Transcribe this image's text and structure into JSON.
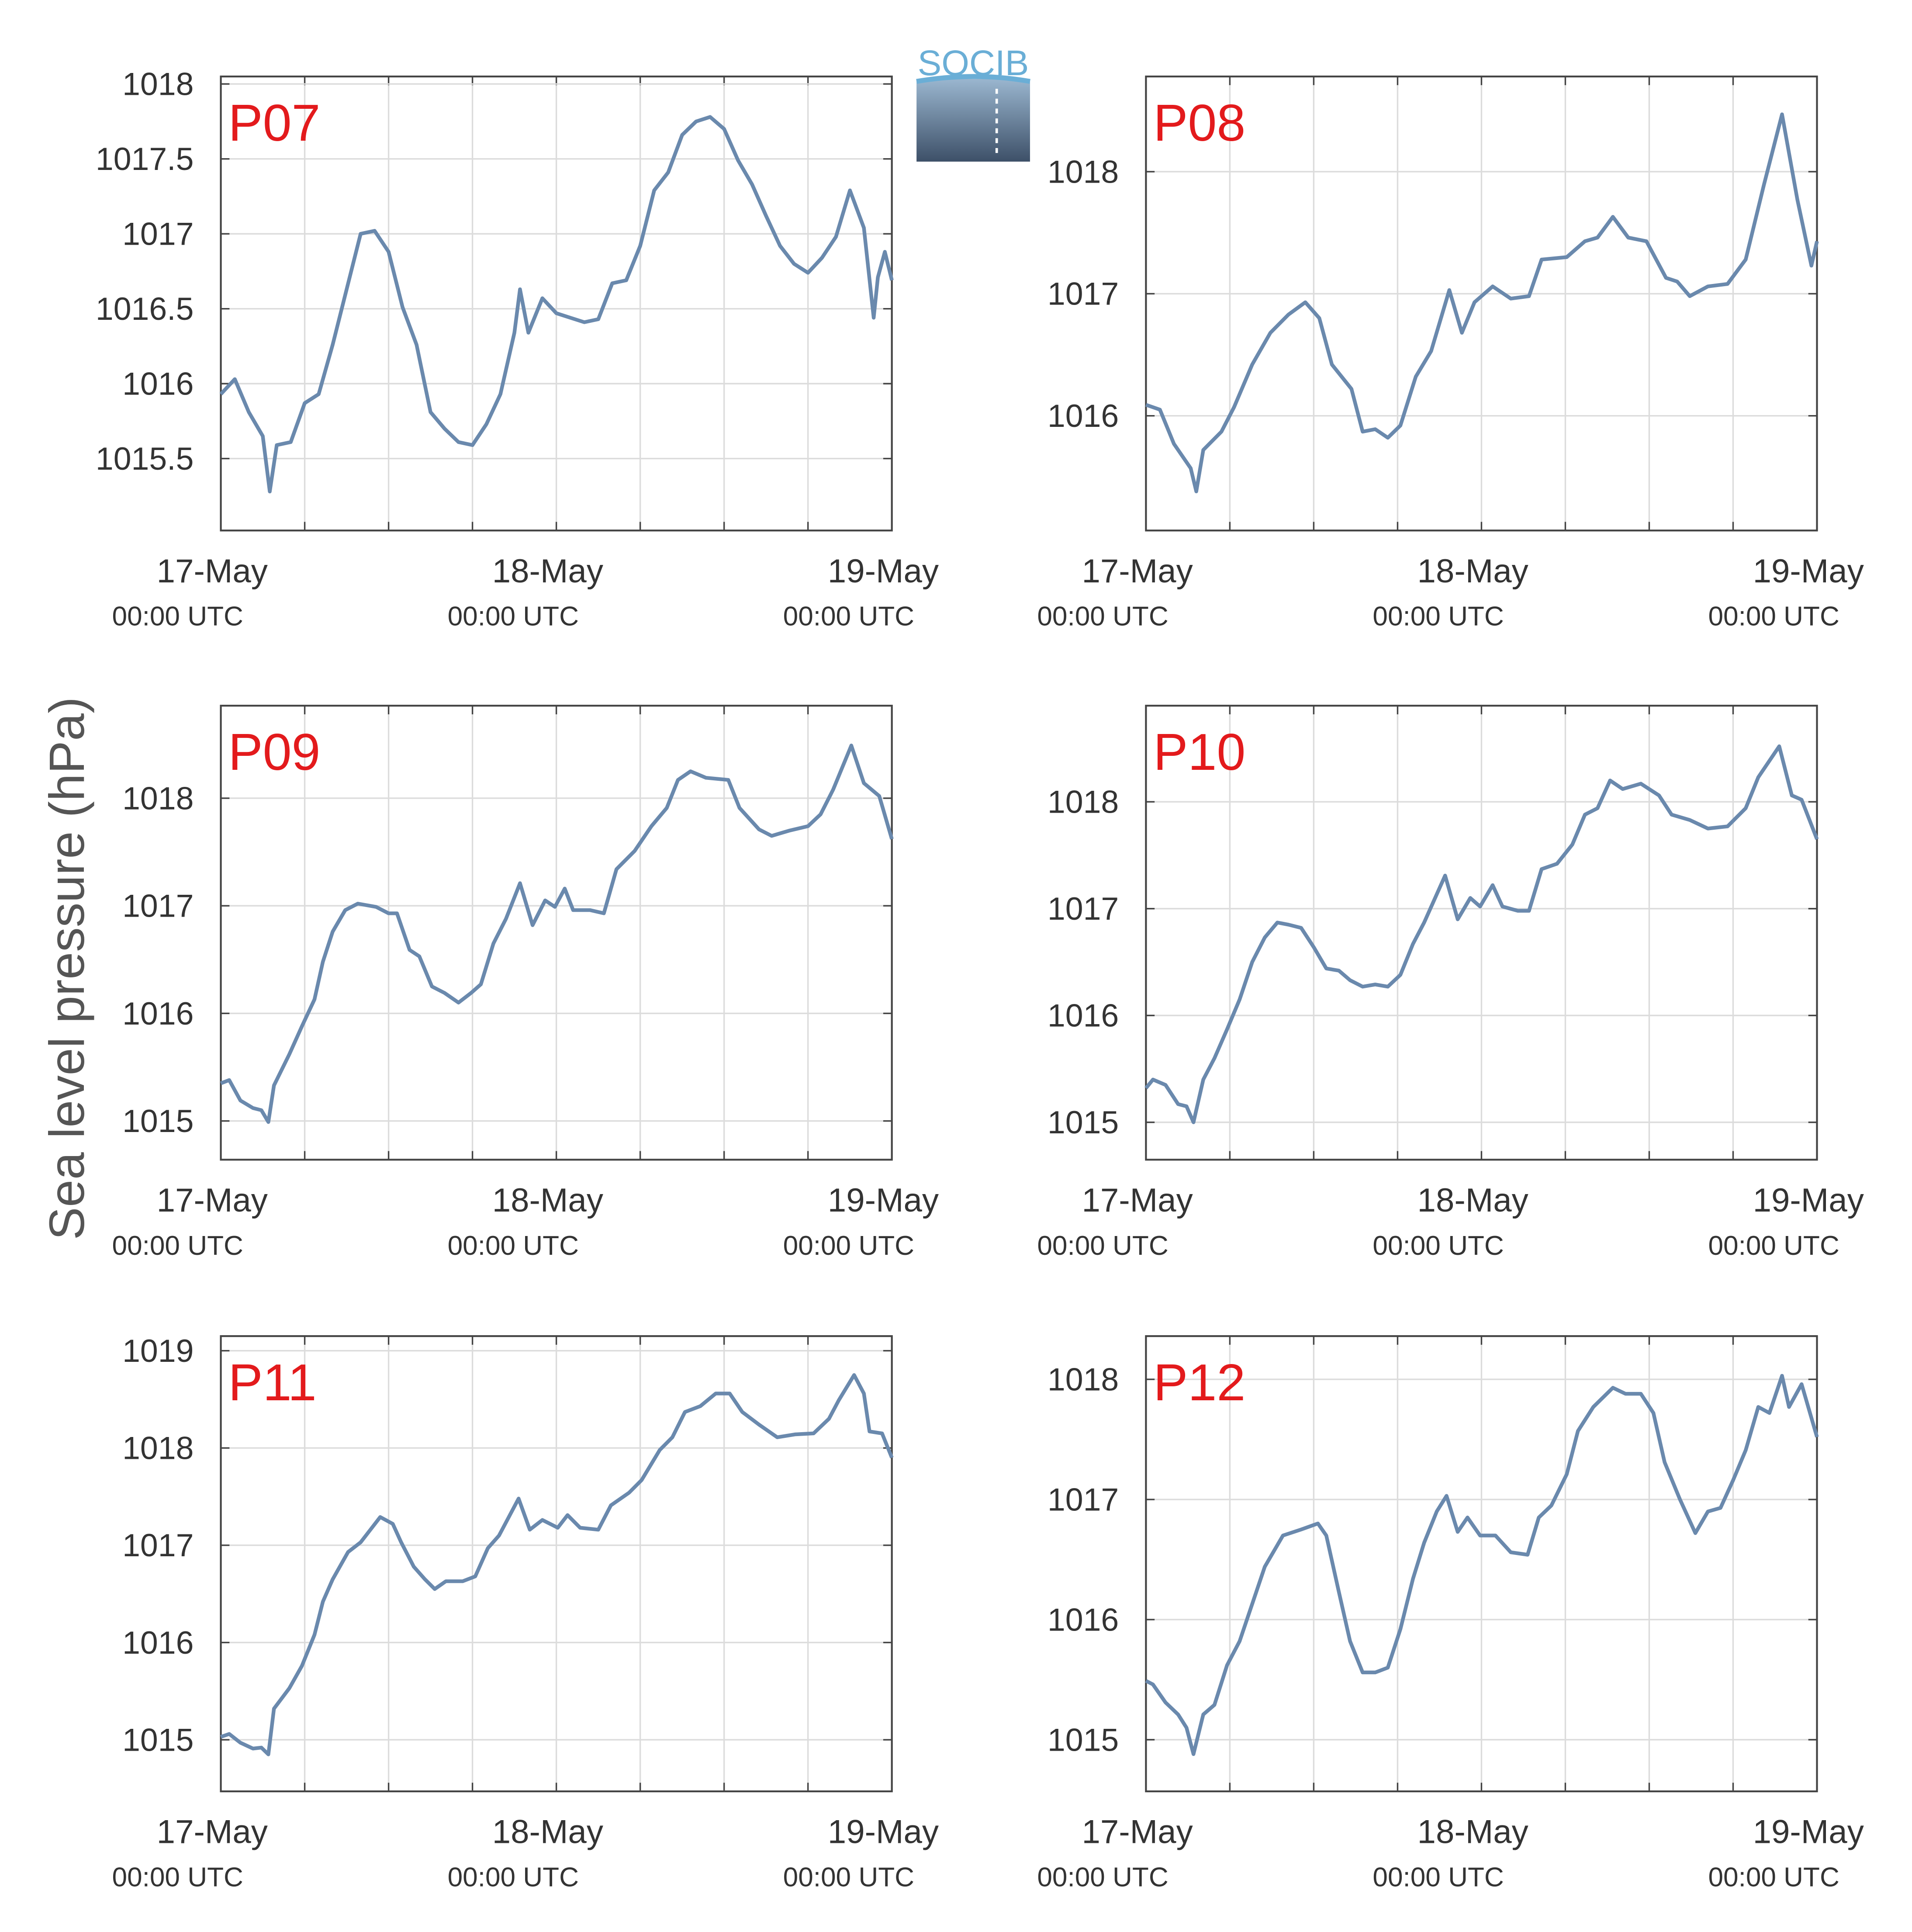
{
  "ylabel": "Sea level pressure (hPa)",
  "logo": "SOCIB",
  "chart_data": [
    {
      "type": "line",
      "title": "P07",
      "color": "#6a89ad",
      "grid": true,
      "xlim": [
        0,
        48
      ],
      "ylim": [
        1015.02,
        1018.05
      ],
      "yticks": [
        {
          "value": 1015.5,
          "label": "1015.5"
        },
        1016,
        {
          "value": 1016.5,
          "label": "1016.5"
        },
        1017,
        {
          "value": 1017.5,
          "label": "1017.5"
        },
        1018
      ],
      "xticks": [
        {
          "value": 0,
          "label": [
            "17-May",
            "00:00 UTC"
          ]
        },
        {
          "value": 24,
          "label": [
            "18-May",
            "00:00 UTC"
          ]
        },
        {
          "value": 48,
          "label": [
            "19-May",
            "00:00 UTC"
          ]
        }
      ],
      "xminorticks": [
        6,
        12,
        18,
        30,
        36,
        42
      ],
      "x": [
        0,
        1,
        2,
        3,
        3.5,
        4,
        5,
        6,
        7,
        8,
        9,
        10,
        11,
        12,
        13,
        14,
        15,
        16,
        17,
        18,
        19,
        20,
        21,
        21.4,
        22,
        23,
        24,
        25,
        26,
        27,
        28,
        29,
        30,
        31,
        32,
        33,
        34,
        35,
        36,
        37,
        38,
        39,
        40,
        41,
        42,
        43,
        44,
        45,
        46,
        46.7,
        47,
        47.5,
        48
      ],
      "values": [
        1015.93,
        1016.03,
        1015.81,
        1015.65,
        1015.28,
        1015.59,
        1015.61,
        1015.87,
        1015.93,
        1016.26,
        1016.63,
        1017.0,
        1017.02,
        1016.88,
        1016.51,
        1016.26,
        1015.81,
        1015.7,
        1015.61,
        1015.59,
        1015.73,
        1015.93,
        1016.34,
        1016.63,
        1016.34,
        1016.57,
        1016.47,
        1016.44,
        1016.41,
        1016.43,
        1016.67,
        1016.69,
        1016.92,
        1017.29,
        1017.41,
        1017.66,
        1017.75,
        1017.78,
        1017.7,
        1017.49,
        1017.33,
        1017.12,
        1016.92,
        1016.8,
        1016.74,
        1016.84,
        1016.98,
        1017.29,
        1017.04,
        1016.44,
        1016.71,
        1016.88,
        1016.69
      ]
    },
    {
      "type": "line",
      "title": "P08",
      "color": "#6a89ad",
      "grid": true,
      "xlim": [
        0,
        48
      ],
      "ylim": [
        1015.06,
        1018.78
      ],
      "yticks": [
        1016,
        1017,
        1018
      ],
      "xticks": [
        {
          "value": 0,
          "label": [
            "17-May",
            "00:00 UTC"
          ]
        },
        {
          "value": 24,
          "label": [
            "18-May",
            "00:00 UTC"
          ]
        },
        {
          "value": 48,
          "label": [
            "19-May",
            "00:00 UTC"
          ]
        }
      ],
      "xminorticks": [
        6,
        12,
        18,
        30,
        36,
        42
      ],
      "x": [
        0,
        1,
        2,
        3.2,
        3.6,
        4.1,
        5.4,
        6.3,
        7.6,
        8.9,
        10.2,
        11.4,
        12.4,
        13.3,
        14.7,
        15.5,
        16.4,
        17.3,
        18.2,
        19.3,
        20.4,
        21.7,
        22.6,
        23.5,
        24.8,
        26.1,
        27.4,
        28.3,
        30.1,
        31.4,
        32.3,
        33.4,
        34.5,
        35.8,
        37.2,
        38,
        38.9,
        40.2,
        41.6,
        42.9,
        44.2,
        45.5,
        46.6,
        47.6,
        48
      ],
      "values": [
        1016.09,
        1016.05,
        1015.77,
        1015.57,
        1015.38,
        1015.72,
        1015.87,
        1016.07,
        1016.42,
        1016.68,
        1016.83,
        1016.93,
        1016.8,
        1016.42,
        1016.22,
        1015.87,
        1015.89,
        1015.82,
        1015.92,
        1016.32,
        1016.53,
        1017.03,
        1016.68,
        1016.93,
        1017.06,
        1016.96,
        1016.98,
        1017.28,
        1017.3,
        1017.43,
        1017.46,
        1017.63,
        1017.46,
        1017.43,
        1017.13,
        1017.1,
        1016.98,
        1017.06,
        1017.08,
        1017.28,
        1017.89,
        1018.47,
        1017.77,
        1017.23,
        1017.43
      ]
    },
    {
      "type": "line",
      "title": "P09",
      "color": "#6a89ad",
      "grid": true,
      "xlim": [
        0,
        48
      ],
      "ylim": [
        1014.64,
        1018.86
      ],
      "yticks": [
        1015,
        1016,
        1017,
        1018
      ],
      "xticks": [
        {
          "value": 0,
          "label": [
            "17-May",
            "00:00 UTC"
          ]
        },
        {
          "value": 24,
          "label": [
            "18-May",
            "00:00 UTC"
          ]
        },
        {
          "value": 48,
          "label": [
            "19-May",
            "00:00 UTC"
          ]
        }
      ],
      "xminorticks": [
        6,
        12,
        18,
        30,
        36,
        42
      ],
      "x": [
        0,
        0.6,
        1.4,
        2.3,
        2.9,
        3.4,
        3.8,
        4.9,
        5.8,
        6.7,
        7.3,
        8,
        8.9,
        9.8,
        11.1,
        12,
        12.6,
        13.5,
        14.2,
        15.1,
        16,
        17,
        17.9,
        18.6,
        19.5,
        20.4,
        21.4,
        22.3,
        23.2,
        23.9,
        24.6,
        25.2,
        26.4,
        27.4,
        28.3,
        29.6,
        30.8,
        31.9,
        32.7,
        33.6,
        34.7,
        36.3,
        37.1,
        38.5,
        39.4,
        40.7,
        42,
        42.9,
        43.8,
        45.1,
        46,
        47.1,
        48
      ],
      "values": [
        1015.35,
        1015.38,
        1015.19,
        1015.12,
        1015.1,
        1014.99,
        1015.33,
        1015.62,
        1015.88,
        1016.13,
        1016.48,
        1016.76,
        1016.96,
        1017.02,
        1016.99,
        1016.93,
        1016.93,
        1016.59,
        1016.53,
        1016.25,
        1016.19,
        1016.1,
        1016.19,
        1016.27,
        1016.65,
        1016.88,
        1017.21,
        1016.82,
        1017.05,
        1016.99,
        1017.16,
        1016.96,
        1016.96,
        1016.93,
        1017.34,
        1017.51,
        1017.74,
        1017.91,
        1018.17,
        1018.25,
        1018.19,
        1018.17,
        1017.91,
        1017.71,
        1017.65,
        1017.7,
        1017.74,
        1017.85,
        1018.08,
        1018.49,
        1018.14,
        1018.02,
        1017.62
      ]
    },
    {
      "type": "line",
      "title": "P10",
      "color": "#6a89ad",
      "grid": true,
      "xlim": [
        0,
        48
      ],
      "ylim": [
        1014.65,
        1018.9
      ],
      "yticks": [
        1015,
        1016,
        1017,
        1018
      ],
      "xticks": [
        {
          "value": 0,
          "label": [
            "17-May",
            "00:00 UTC"
          ]
        },
        {
          "value": 24,
          "label": [
            "18-May",
            "00:00 UTC"
          ]
        },
        {
          "value": 48,
          "label": [
            "19-May",
            "00:00 UTC"
          ]
        }
      ],
      "xminorticks": [
        6,
        12,
        18,
        30,
        36,
        42
      ],
      "x": [
        0,
        0.5,
        1.4,
        2.3,
        2.9,
        3.4,
        4.1,
        4.9,
        5.8,
        6.7,
        7.6,
        8.5,
        9.4,
        10.2,
        11.1,
        12,
        12.9,
        13.8,
        14.6,
        15.5,
        16.4,
        17.3,
        18.2,
        19.1,
        19.9,
        21.4,
        22.3,
        23.2,
        23.9,
        24.8,
        25.5,
        26.6,
        27.4,
        28.3,
        29.4,
        30.5,
        31.4,
        32.3,
        33.2,
        34.1,
        35.4,
        36.7,
        37.6,
        38.9,
        40.2,
        41.6,
        42.9,
        43.8,
        45.3,
        46.2,
        46.9,
        48
      ],
      "values": [
        1015.32,
        1015.4,
        1015.35,
        1015.17,
        1015.15,
        1015.0,
        1015.4,
        1015.6,
        1015.87,
        1016.15,
        1016.5,
        1016.73,
        1016.87,
        1016.85,
        1016.82,
        1016.64,
        1016.44,
        1016.42,
        1016.33,
        1016.27,
        1016.29,
        1016.27,
        1016.38,
        1016.67,
        1016.87,
        1017.31,
        1016.9,
        1017.1,
        1017.02,
        1017.22,
        1017.02,
        1016.98,
        1016.98,
        1017.37,
        1017.42,
        1017.6,
        1017.88,
        1017.94,
        1018.2,
        1018.12,
        1018.17,
        1018.06,
        1017.88,
        1017.83,
        1017.75,
        1017.77,
        1017.94,
        1018.23,
        1018.52,
        1018.06,
        1018.02,
        1017.65
      ]
    },
    {
      "type": "line",
      "title": "P11",
      "color": "#6a89ad",
      "grid": true,
      "xlim": [
        0,
        48
      ],
      "ylim": [
        1014.47,
        1019.15
      ],
      "yticks": [
        1015,
        1016,
        1017,
        1018,
        1019
      ],
      "xticks": [
        {
          "value": 0,
          "label": [
            "17-May",
            "00:00 UTC"
          ]
        },
        {
          "value": 24,
          "label": [
            "18-May",
            "00:00 UTC"
          ]
        },
        {
          "value": 48,
          "label": [
            "19-May",
            "00:00 UTC"
          ]
        }
      ],
      "xminorticks": [
        6,
        12,
        18,
        30,
        36,
        42
      ],
      "x": [
        0,
        0.6,
        1.4,
        2.3,
        2.9,
        3.4,
        3.8,
        4.9,
        5.8,
        6.7,
        7.3,
        8,
        9.1,
        10,
        10.7,
        11.4,
        12.3,
        12.9,
        13.8,
        14.6,
        15.3,
        16.1,
        17.3,
        18.2,
        19.1,
        19.9,
        21.3,
        22.1,
        23,
        24.1,
        24.8,
        25.7,
        27,
        27.9,
        29.2,
        30.1,
        31.4,
        32.3,
        33.2,
        34.3,
        35.4,
        36.4,
        37.3,
        38.5,
        39.8,
        41.1,
        42.4,
        43.5,
        44.2,
        45.3,
        46,
        46.4,
        47.3,
        48
      ],
      "values": [
        1015.03,
        1015.06,
        1014.97,
        1014.91,
        1014.92,
        1014.85,
        1015.32,
        1015.53,
        1015.76,
        1016.08,
        1016.42,
        1016.65,
        1016.93,
        1017.03,
        1017.16,
        1017.29,
        1017.22,
        1017.03,
        1016.78,
        1016.65,
        1016.55,
        1016.63,
        1016.63,
        1016.68,
        1016.97,
        1017.1,
        1017.48,
        1017.16,
        1017.26,
        1017.18,
        1017.31,
        1017.18,
        1017.16,
        1017.41,
        1017.54,
        1017.67,
        1017.98,
        1018.11,
        1018.37,
        1018.43,
        1018.56,
        1018.56,
        1018.37,
        1018.24,
        1018.11,
        1018.14,
        1018.15,
        1018.3,
        1018.49,
        1018.75,
        1018.56,
        1018.17,
        1018.15,
        1017.9
      ]
    },
    {
      "type": "line",
      "title": "P12",
      "color": "#6a89ad",
      "grid": true,
      "xlim": [
        0,
        48
      ],
      "ylim": [
        1014.57,
        1018.36
      ],
      "yticks": [
        1015,
        1016,
        1017,
        1018
      ],
      "xticks": [
        {
          "value": 0,
          "label": [
            "17-May",
            "00:00 UTC"
          ]
        },
        {
          "value": 24,
          "label": [
            "18-May",
            "00:00 UTC"
          ]
        },
        {
          "value": 48,
          "label": [
            "19-May",
            "00:00 UTC"
          ]
        }
      ],
      "xminorticks": [
        6,
        12,
        18,
        30,
        36,
        42
      ],
      "x": [
        0,
        0.5,
        1.4,
        2.3,
        2.9,
        3.4,
        4.1,
        4.9,
        5.8,
        6.7,
        7.6,
        8.5,
        9.8,
        11.1,
        12.3,
        12.9,
        13.8,
        14.6,
        15.5,
        16.4,
        17.3,
        18.2,
        19.1,
        19.9,
        20.8,
        21.5,
        22.3,
        23,
        23.9,
        25,
        26.1,
        27.3,
        28.1,
        29,
        30.1,
        30.9,
        32,
        33.4,
        34.3,
        35.4,
        36.3,
        37.1,
        38.2,
        39.3,
        40.2,
        41.1,
        42,
        42.9,
        43.8,
        44.6,
        45.5,
        46,
        46.9,
        48
      ],
      "values": [
        1015.49,
        1015.46,
        1015.31,
        1015.21,
        1015.1,
        1014.88,
        1015.21,
        1015.29,
        1015.62,
        1015.82,
        1016.13,
        1016.44,
        1016.7,
        1016.75,
        1016.8,
        1016.7,
        1016.23,
        1015.82,
        1015.56,
        1015.56,
        1015.6,
        1015.92,
        1016.34,
        1016.64,
        1016.9,
        1017.03,
        1016.73,
        1016.85,
        1016.7,
        1016.7,
        1016.56,
        1016.54,
        1016.85,
        1016.95,
        1017.21,
        1017.57,
        1017.77,
        1017.93,
        1017.88,
        1017.88,
        1017.72,
        1017.31,
        1017.0,
        1016.72,
        1016.9,
        1016.93,
        1017.16,
        1017.41,
        1017.77,
        1017.72,
        1018.03,
        1017.77,
        1017.96,
        1017.52
      ]
    }
  ]
}
